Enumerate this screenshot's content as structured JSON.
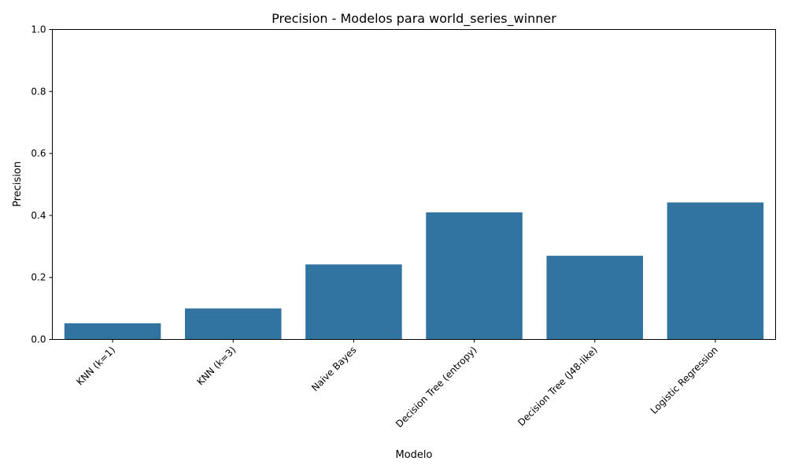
{
  "chart_data": {
    "type": "bar",
    "title": "Precision - Modelos para world_series_winner",
    "xlabel": "Modelo",
    "ylabel": "Precision",
    "categories": [
      "KNN (k=1)",
      "KNN (k=3)",
      "Naive Bayes",
      "Decision Tree (entropy)",
      "Decision Tree (J48-like)",
      "Logistic Regression"
    ],
    "values": [
      0.052,
      0.1,
      0.242,
      0.41,
      0.27,
      0.442
    ],
    "ylim": [
      0,
      1.0
    ],
    "yticks": [
      0.0,
      0.2,
      0.4,
      0.6,
      0.8,
      1.0
    ],
    "ytick_labels": [
      "0.0",
      "0.2",
      "0.4",
      "0.6",
      "0.8",
      "1.0"
    ],
    "grid": false,
    "bar_color": "#3274a1"
  }
}
